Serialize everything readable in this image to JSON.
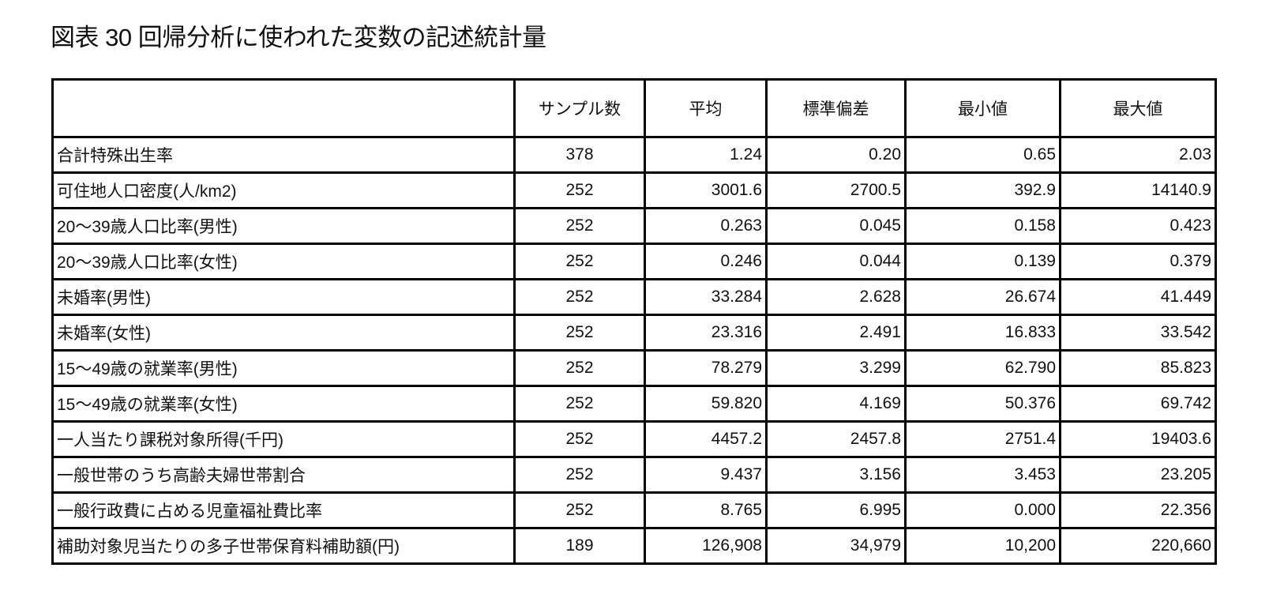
{
  "title": "図表 30 回帰分析に使われた変数の記述統計量",
  "table": {
    "headers": [
      "",
      "サンプル数",
      "平均",
      "標準偏差",
      "最小値",
      "最大値"
    ],
    "rows": [
      {
        "variable": "合計特殊出生率",
        "n": "378",
        "mean": "1.24",
        "sd": "0.20",
        "min": "0.65",
        "max": "2.03"
      },
      {
        "variable": "可住地人口密度(人/km2)",
        "n": "252",
        "mean": "3001.6",
        "sd": "2700.5",
        "min": "392.9",
        "max": "14140.9"
      },
      {
        "variable": "20～39歳人口比率(男性)",
        "n": "252",
        "mean": "0.263",
        "sd": "0.045",
        "min": "0.158",
        "max": "0.423"
      },
      {
        "variable": "20～39歳人口比率(女性)",
        "n": "252",
        "mean": "0.246",
        "sd": "0.044",
        "min": "0.139",
        "max": "0.379"
      },
      {
        "variable": "未婚率(男性)",
        "n": "252",
        "mean": "33.284",
        "sd": "2.628",
        "min": "26.674",
        "max": "41.449"
      },
      {
        "variable": "未婚率(女性)",
        "n": "252",
        "mean": "23.316",
        "sd": "2.491",
        "min": "16.833",
        "max": "33.542"
      },
      {
        "variable": "15～49歳の就業率(男性)",
        "n": "252",
        "mean": "78.279",
        "sd": "3.299",
        "min": "62.790",
        "max": "85.823"
      },
      {
        "variable": "15～49歳の就業率(女性)",
        "n": "252",
        "mean": "59.820",
        "sd": "4.169",
        "min": "50.376",
        "max": "69.742"
      },
      {
        "variable": "一人当たり課税対象所得(千円)",
        "n": "252",
        "mean": "4457.2",
        "sd": "2457.8",
        "min": "2751.4",
        "max": "19403.6"
      },
      {
        "variable": "一般世帯のうち高齢夫婦世帯割合",
        "n": "252",
        "mean": "9.437",
        "sd": "3.156",
        "min": "3.453",
        "max": "23.205"
      },
      {
        "variable": "一般行政費に占める児童福祉費比率",
        "n": "252",
        "mean": "8.765",
        "sd": "6.995",
        "min": "0.000",
        "max": "22.356"
      },
      {
        "variable": "補助対象児当たりの多子世帯保育料補助額(円)",
        "n": "189",
        "mean": "126,908",
        "sd": "34,979",
        "min": "10,200",
        "max": "220,660"
      }
    ]
  }
}
